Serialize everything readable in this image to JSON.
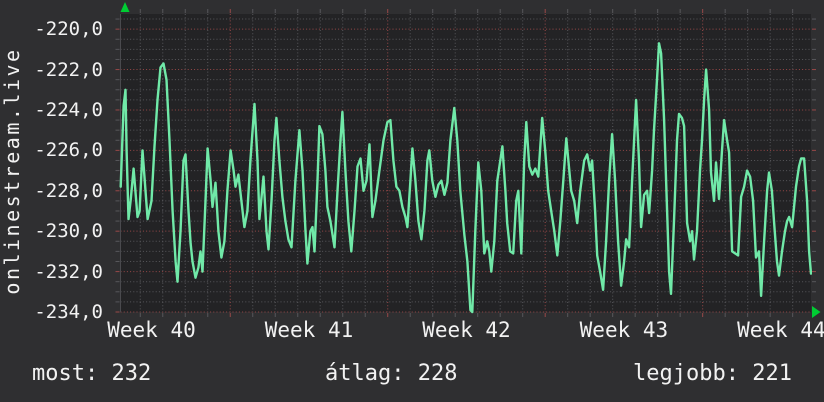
{
  "watermark": "onlinestream.live",
  "stats": {
    "now": {
      "text": "most: 232",
      "label": "most",
      "value": 232
    },
    "average": {
      "text": "átlag: 228",
      "label": "átlag",
      "value": 228
    },
    "best": {
      "text": "legjobb: 221",
      "label": "legjobb",
      "value": 221
    }
  },
  "colors": {
    "background": "#2f2f31",
    "plot_background": "#232325",
    "line": "#70e9a8",
    "major_grid": "#984848",
    "minor_grid": "#57575b",
    "axis_border": "#4a4a4e",
    "marker": "#00cc33",
    "text": "#f2f2f2"
  },
  "chart_data": {
    "type": "line",
    "title": "",
    "xlabel": "",
    "ylabel": "",
    "legend": "none",
    "grid": "dotted, red majors / grey minors",
    "x_unit": "week number",
    "x_range_weeks": [
      40.303,
      44.688
    ],
    "y_range": [
      -234.0,
      -219.25
    ],
    "x_tick_labels": [
      {
        "label": "Week 40",
        "week_center": 40.5
      },
      {
        "label": "Week 41",
        "week_center": 41.5
      },
      {
        "label": "Week 42",
        "week_center": 42.5
      },
      {
        "label": "Week 43",
        "week_center": 43.5
      },
      {
        "label": "Week 44",
        "week_center": 44.5
      }
    ],
    "x_major_gridline_weeks": [
      41,
      42,
      43,
      44
    ],
    "x_minor_divisions_per_week": 7,
    "y_major_ticks": [
      -220,
      -222,
      -224,
      -226,
      -228,
      -230,
      -232,
      -234
    ],
    "y_tick_labels": [
      "-220,0",
      "-222,0",
      "-224,0",
      "-226,0",
      "-228,0",
      "-230,0",
      "-232,0",
      "-234,0"
    ],
    "y_minor_step": 0.5,
    "series": [
      {
        "name": "",
        "points": [
          [
            40.304,
            -227.8
          ],
          [
            40.323,
            -223.8
          ],
          [
            40.335,
            -223.0
          ],
          [
            40.342,
            -226.0
          ],
          [
            40.354,
            -229.4
          ],
          [
            40.367,
            -228.5
          ],
          [
            40.386,
            -226.9
          ],
          [
            40.411,
            -229.3
          ],
          [
            40.424,
            -229.0
          ],
          [
            40.443,
            -226.0
          ],
          [
            40.462,
            -228.0
          ],
          [
            40.475,
            -229.4
          ],
          [
            40.5,
            -228.5
          ],
          [
            40.519,
            -225.8
          ],
          [
            40.538,
            -223.5
          ],
          [
            40.557,
            -221.9
          ],
          [
            40.576,
            -221.7
          ],
          [
            40.595,
            -222.5
          ],
          [
            40.614,
            -225.5
          ],
          [
            40.634,
            -229.0
          ],
          [
            40.653,
            -231.5
          ],
          [
            40.665,
            -232.5
          ],
          [
            40.684,
            -230.0
          ],
          [
            40.703,
            -226.5
          ],
          [
            40.716,
            -226.2
          ],
          [
            40.735,
            -229.0
          ],
          [
            40.748,
            -230.6
          ],
          [
            40.76,
            -231.5
          ],
          [
            40.779,
            -232.3
          ],
          [
            40.798,
            -231.8
          ],
          [
            40.811,
            -231.0
          ],
          [
            40.824,
            -232.0
          ],
          [
            40.843,
            -228.5
          ],
          [
            40.856,
            -225.9
          ],
          [
            40.875,
            -227.5
          ],
          [
            40.887,
            -228.8
          ],
          [
            40.906,
            -227.6
          ],
          [
            40.925,
            -230.0
          ],
          [
            40.944,
            -231.3
          ],
          [
            40.963,
            -230.5
          ],
          [
            40.982,
            -228.0
          ],
          [
            41.002,
            -226.0
          ],
          [
            41.021,
            -227.0
          ],
          [
            41.033,
            -227.8
          ],
          [
            41.052,
            -227.2
          ],
          [
            41.071,
            -228.5
          ],
          [
            41.09,
            -229.8
          ],
          [
            41.109,
            -229.0
          ],
          [
            41.128,
            -226.5
          ],
          [
            41.154,
            -223.7
          ],
          [
            41.173,
            -226.5
          ],
          [
            41.185,
            -229.4
          ],
          [
            41.211,
            -227.3
          ],
          [
            41.23,
            -230.0
          ],
          [
            41.243,
            -230.9
          ],
          [
            41.262,
            -228.5
          ],
          [
            41.281,
            -225.5
          ],
          [
            41.293,
            -224.4
          ],
          [
            41.312,
            -226.5
          ],
          [
            41.331,
            -228.3
          ],
          [
            41.35,
            -229.5
          ],
          [
            41.369,
            -230.4
          ],
          [
            41.389,
            -230.8
          ],
          [
            41.414,
            -227.5
          ],
          [
            41.439,
            -225.0
          ],
          [
            41.459,
            -227.0
          ],
          [
            41.478,
            -230.0
          ],
          [
            41.49,
            -231.6
          ],
          [
            41.509,
            -230.0
          ],
          [
            41.522,
            -229.8
          ],
          [
            41.535,
            -231.0
          ],
          [
            41.554,
            -227.5
          ],
          [
            41.566,
            -224.8
          ],
          [
            41.585,
            -225.2
          ],
          [
            41.604,
            -227.0
          ],
          [
            41.617,
            -228.8
          ],
          [
            41.636,
            -229.5
          ],
          [
            41.662,
            -230.8
          ],
          [
            41.681,
            -228.0
          ],
          [
            41.7,
            -225.5
          ],
          [
            41.712,
            -224.1
          ],
          [
            41.731,
            -227.0
          ],
          [
            41.75,
            -229.5
          ],
          [
            41.769,
            -231.0
          ],
          [
            41.789,
            -229.0
          ],
          [
            41.808,
            -226.8
          ],
          [
            41.827,
            -226.4
          ],
          [
            41.846,
            -228.0
          ],
          [
            41.865,
            -227.5
          ],
          [
            41.884,
            -225.7
          ],
          [
            41.903,
            -229.3
          ],
          [
            41.922,
            -228.5
          ],
          [
            41.947,
            -227.0
          ],
          [
            41.973,
            -225.5
          ],
          [
            41.998,
            -224.6
          ],
          [
            42.017,
            -224.5
          ],
          [
            42.036,
            -226.5
          ],
          [
            42.055,
            -227.8
          ],
          [
            42.074,
            -228.0
          ],
          [
            42.093,
            -228.8
          ],
          [
            42.112,
            -229.3
          ],
          [
            42.125,
            -229.8
          ],
          [
            42.144,
            -227.5
          ],
          [
            42.157,
            -225.9
          ],
          [
            42.176,
            -227.5
          ],
          [
            42.195,
            -229.5
          ],
          [
            42.214,
            -230.4
          ],
          [
            42.233,
            -229.0
          ],
          [
            42.252,
            -226.5
          ],
          [
            42.264,
            -226.0
          ],
          [
            42.283,
            -227.5
          ],
          [
            42.303,
            -228.3
          ],
          [
            42.322,
            -227.7
          ],
          [
            42.341,
            -227.5
          ],
          [
            42.36,
            -228.2
          ],
          [
            42.379,
            -227.6
          ],
          [
            42.398,
            -225.5
          ],
          [
            42.423,
            -223.9
          ],
          [
            42.442,
            -225.5
          ],
          [
            42.461,
            -228.0
          ],
          [
            42.487,
            -230.2
          ],
          [
            42.506,
            -231.5
          ],
          [
            42.525,
            -233.9
          ],
          [
            42.537,
            -234.0
          ],
          [
            42.556,
            -230.0
          ],
          [
            42.575,
            -226.6
          ],
          [
            42.594,
            -228.0
          ],
          [
            42.613,
            -231.1
          ],
          [
            42.632,
            -230.5
          ],
          [
            42.645,
            -231.0
          ],
          [
            42.658,
            -232.0
          ],
          [
            42.677,
            -230.5
          ],
          [
            42.696,
            -227.5
          ],
          [
            42.715,
            -226.5
          ],
          [
            42.728,
            -225.8
          ],
          [
            42.747,
            -228.0
          ],
          [
            42.759,
            -229.6
          ],
          [
            42.778,
            -231.0
          ],
          [
            42.797,
            -231.1
          ],
          [
            42.816,
            -228.5
          ],
          [
            42.829,
            -228.0
          ],
          [
            42.848,
            -231.1
          ],
          [
            42.867,
            -226.5
          ],
          [
            42.88,
            -224.6
          ],
          [
            42.899,
            -226.8
          ],
          [
            42.918,
            -227.2
          ],
          [
            42.937,
            -226.9
          ],
          [
            42.956,
            -227.3
          ],
          [
            42.981,
            -224.4
          ],
          [
            43.0,
            -226.0
          ],
          [
            43.019,
            -228.0
          ],
          [
            43.038,
            -229.0
          ],
          [
            43.058,
            -230.0
          ],
          [
            43.077,
            -231.2
          ],
          [
            43.096,
            -229.5
          ],
          [
            43.115,
            -227.5
          ],
          [
            43.134,
            -225.4
          ],
          [
            43.153,
            -227.0
          ],
          [
            43.165,
            -228.0
          ],
          [
            43.184,
            -228.5
          ],
          [
            43.203,
            -229.6
          ],
          [
            43.222,
            -228.0
          ],
          [
            43.248,
            -226.5
          ],
          [
            43.267,
            -226.2
          ],
          [
            43.286,
            -227.0
          ],
          [
            43.298,
            -226.5
          ],
          [
            43.317,
            -229.0
          ],
          [
            43.33,
            -231.2
          ],
          [
            43.349,
            -232.0
          ],
          [
            43.368,
            -232.9
          ],
          [
            43.387,
            -230.5
          ],
          [
            43.406,
            -227.5
          ],
          [
            43.425,
            -225.2
          ],
          [
            43.444,
            -227.5
          ],
          [
            43.463,
            -230.5
          ],
          [
            43.482,
            -232.7
          ],
          [
            43.501,
            -231.5
          ],
          [
            43.514,
            -230.4
          ],
          [
            43.533,
            -230.8
          ],
          [
            43.552,
            -227.5
          ],
          [
            43.577,
            -223.5
          ],
          [
            43.596,
            -226.5
          ],
          [
            43.609,
            -229.8
          ],
          [
            43.628,
            -228.2
          ],
          [
            43.647,
            -228.0
          ],
          [
            43.66,
            -229.1
          ],
          [
            43.679,
            -227.0
          ],
          [
            43.691,
            -225.0
          ],
          [
            43.71,
            -222.5
          ],
          [
            43.723,
            -220.7
          ],
          [
            43.736,
            -221.2
          ],
          [
            43.755,
            -224.5
          ],
          [
            43.768,
            -227.5
          ],
          [
            43.787,
            -232.0
          ],
          [
            43.799,
            -233.1
          ],
          [
            43.818,
            -229.5
          ],
          [
            43.837,
            -225.5
          ],
          [
            43.85,
            -224.2
          ],
          [
            43.869,
            -224.4
          ],
          [
            43.882,
            -224.8
          ],
          [
            43.901,
            -229.6
          ],
          [
            43.92,
            -230.5
          ],
          [
            43.933,
            -230.0
          ],
          [
            43.945,
            -231.4
          ],
          [
            43.964,
            -230.0
          ],
          [
            43.983,
            -227.0
          ],
          [
            43.996,
            -225.5
          ],
          [
            44.009,
            -223.5
          ],
          [
            44.022,
            -222.0
          ],
          [
            44.041,
            -224.0
          ],
          [
            44.053,
            -227.1
          ],
          [
            44.072,
            -228.5
          ],
          [
            44.085,
            -226.6
          ],
          [
            44.104,
            -228.4
          ],
          [
            44.123,
            -226.0
          ],
          [
            44.136,
            -224.5
          ],
          [
            44.155,
            -225.5
          ],
          [
            44.168,
            -226.1
          ],
          [
            44.187,
            -231.0
          ],
          [
            44.206,
            -231.1
          ],
          [
            44.225,
            -231.2
          ],
          [
            44.244,
            -228.3
          ],
          [
            44.263,
            -227.8
          ],
          [
            44.282,
            -227.0
          ],
          [
            44.301,
            -227.3
          ],
          [
            44.32,
            -228.5
          ],
          [
            44.339,
            -231.3
          ],
          [
            44.358,
            -231.0
          ],
          [
            44.371,
            -233.2
          ],
          [
            44.39,
            -230.5
          ],
          [
            44.409,
            -228.0
          ],
          [
            44.421,
            -227.1
          ],
          [
            44.44,
            -228.0
          ],
          [
            44.453,
            -229.5
          ],
          [
            44.472,
            -231.5
          ],
          [
            44.485,
            -232.2
          ],
          [
            44.504,
            -231.0
          ],
          [
            44.523,
            -230.0
          ],
          [
            44.536,
            -229.5
          ],
          [
            44.549,
            -229.3
          ],
          [
            44.568,
            -229.8
          ],
          [
            44.593,
            -227.8
          ],
          [
            44.612,
            -226.8
          ],
          [
            44.625,
            -226.4
          ],
          [
            44.644,
            -226.4
          ],
          [
            44.663,
            -228.5
          ],
          [
            44.676,
            -231.0
          ],
          [
            44.688,
            -232.1
          ]
        ]
      }
    ]
  }
}
